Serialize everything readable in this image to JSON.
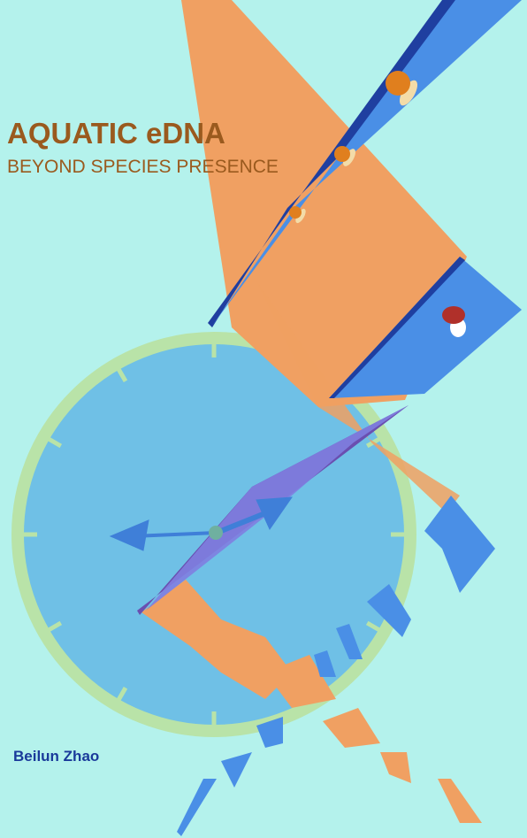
{
  "cover": {
    "title": "AQUATIC eDNA",
    "subtitle": "BEYOND SPECIES PRESENCE",
    "author": "Beilun Zhao"
  }
}
